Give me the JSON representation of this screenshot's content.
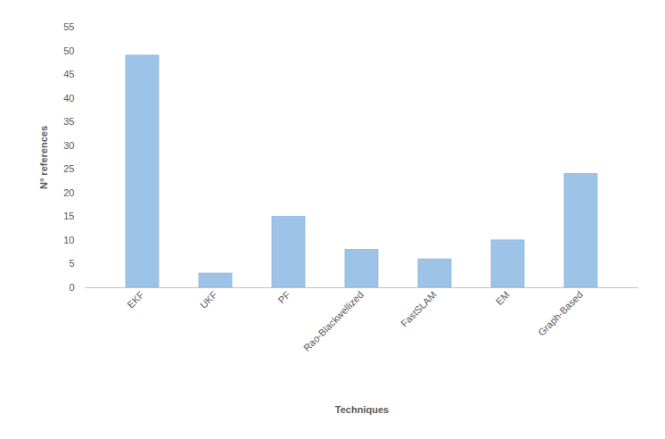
{
  "chart_data": {
    "type": "bar",
    "categories": [
      "EKF",
      "UKF",
      "PF",
      "Rao-Blackwellized",
      "FastSLAM",
      "EM",
      "Graph-Based"
    ],
    "values": [
      49,
      3,
      15,
      8,
      6,
      10,
      24
    ],
    "color": "#9dc3e6",
    "xlabel": "Techniques",
    "ylabel": "N° references",
    "ylim": [
      0,
      55
    ],
    "yticks": [
      0,
      5,
      10,
      15,
      20,
      25,
      30,
      35,
      40,
      45,
      50,
      55
    ],
    "grid": false
  }
}
